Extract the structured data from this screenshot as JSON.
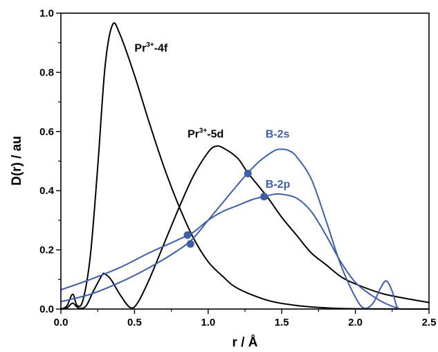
{
  "chart_data": {
    "type": "line",
    "title": "",
    "xlabel": "r / Å",
    "ylabel": "D(r) / au",
    "xlim": [
      0.0,
      2.5
    ],
    "ylim": [
      0.0,
      1.0
    ],
    "x_ticks": [
      "0.0",
      "0.5",
      "1.0",
      "1.5",
      "2.0",
      "2.5"
    ],
    "y_ticks": [
      "0.0",
      "0.2",
      "0.4",
      "0.6",
      "0.8",
      "1.0"
    ],
    "grid": false,
    "series": [
      {
        "name": "Pr³⁺-4f",
        "label_parts": {
          "base": "Pr",
          "sup": "3+",
          "suffix": "-4f"
        },
        "color": "#000000",
        "points": [
          [
            0.0,
            0.0
          ],
          [
            0.04,
            0.01
          ],
          [
            0.08,
            0.05
          ],
          [
            0.11,
            0.012
          ],
          [
            0.15,
            0.03
          ],
          [
            0.2,
            0.18
          ],
          [
            0.25,
            0.48
          ],
          [
            0.3,
            0.82
          ],
          [
            0.35,
            0.96
          ],
          [
            0.4,
            0.93
          ],
          [
            0.5,
            0.79
          ],
          [
            0.6,
            0.63
          ],
          [
            0.7,
            0.48
          ],
          [
            0.8,
            0.35
          ],
          [
            0.9,
            0.24
          ],
          [
            1.0,
            0.16
          ],
          [
            1.1,
            0.11
          ],
          [
            1.2,
            0.07
          ],
          [
            1.4,
            0.03
          ],
          [
            1.6,
            0.012
          ],
          [
            1.8,
            0.004
          ],
          [
            2.0,
            0.001
          ],
          [
            2.5,
            0.0
          ]
        ]
      },
      {
        "name": "Pr³⁺-5d",
        "label_parts": {
          "base": "Pr",
          "sup": "3+",
          "suffix": "-5d"
        },
        "color": "#000000",
        "points": [
          [
            0.0,
            0.0
          ],
          [
            0.04,
            0.003
          ],
          [
            0.08,
            0.02
          ],
          [
            0.12,
            0.003
          ],
          [
            0.17,
            0.01
          ],
          [
            0.22,
            0.06
          ],
          [
            0.28,
            0.115
          ],
          [
            0.3,
            0.118
          ],
          [
            0.34,
            0.1
          ],
          [
            0.4,
            0.05
          ],
          [
            0.47,
            0.005
          ],
          [
            0.52,
            0.02
          ],
          [
            0.6,
            0.1
          ],
          [
            0.7,
            0.22
          ],
          [
            0.8,
            0.34
          ],
          [
            0.9,
            0.45
          ],
          [
            1.0,
            0.53
          ],
          [
            1.05,
            0.55
          ],
          [
            1.1,
            0.545
          ],
          [
            1.2,
            0.51
          ],
          [
            1.27,
            0.46
          ],
          [
            1.4,
            0.38
          ],
          [
            1.5,
            0.31
          ],
          [
            1.6,
            0.25
          ],
          [
            1.7,
            0.19
          ],
          [
            1.8,
            0.15
          ],
          [
            1.9,
            0.11
          ],
          [
            2.0,
            0.085
          ],
          [
            2.2,
            0.05
          ],
          [
            2.5,
            0.022
          ]
        ]
      },
      {
        "name": "B-2s",
        "color": "#3f5ea8",
        "points": [
          [
            0.0,
            0.025
          ],
          [
            0.2,
            0.05
          ],
          [
            0.4,
            0.09
          ],
          [
            0.6,
            0.14
          ],
          [
            0.8,
            0.2
          ],
          [
            0.9,
            0.24
          ],
          [
            1.0,
            0.3
          ],
          [
            1.1,
            0.36
          ],
          [
            1.2,
            0.42
          ],
          [
            1.27,
            0.46
          ],
          [
            1.35,
            0.5
          ],
          [
            1.45,
            0.535
          ],
          [
            1.5,
            0.54
          ],
          [
            1.55,
            0.535
          ],
          [
            1.6,
            0.515
          ],
          [
            1.7,
            0.44
          ],
          [
            1.8,
            0.3
          ],
          [
            1.9,
            0.15
          ],
          [
            2.0,
            0.04
          ],
          [
            2.06,
            0.003
          ],
          [
            2.12,
            0.02
          ],
          [
            2.17,
            0.07
          ],
          [
            2.21,
            0.095
          ],
          [
            2.25,
            0.06
          ],
          [
            2.28,
            0.01
          ],
          [
            2.3,
            0.0
          ]
        ]
      },
      {
        "name": "B-2p",
        "color": "#3f5ea8",
        "points": [
          [
            0.0,
            0.065
          ],
          [
            0.2,
            0.1
          ],
          [
            0.4,
            0.14
          ],
          [
            0.6,
            0.19
          ],
          [
            0.8,
            0.235
          ],
          [
            0.9,
            0.26
          ],
          [
            1.0,
            0.3
          ],
          [
            1.1,
            0.33
          ],
          [
            1.2,
            0.35
          ],
          [
            1.3,
            0.37
          ],
          [
            1.38,
            0.38
          ],
          [
            1.45,
            0.388
          ],
          [
            1.5,
            0.388
          ],
          [
            1.6,
            0.375
          ],
          [
            1.7,
            0.33
          ],
          [
            1.8,
            0.25
          ],
          [
            1.9,
            0.16
          ],
          [
            2.0,
            0.09
          ],
          [
            2.1,
            0.05
          ],
          [
            2.2,
            0.02
          ],
          [
            2.3,
            0.0
          ]
        ]
      }
    ],
    "intersection_markers": [
      [
        0.86,
        0.25
      ],
      [
        0.88,
        0.22
      ],
      [
        1.27,
        0.458
      ],
      [
        1.38,
        0.38
      ]
    ],
    "annotations": [
      {
        "series": "Pr³⁺-4f",
        "at": [
          0.5,
          0.87
        ],
        "color": "#000000"
      },
      {
        "series": "Pr³⁺-5d",
        "at": [
          0.86,
          0.58
        ],
        "color": "#000000"
      },
      {
        "series": "B-2s",
        "at": [
          1.39,
          0.58
        ],
        "color": "#3f5ea8"
      },
      {
        "series": "B-2p",
        "at": [
          1.39,
          0.41
        ],
        "color": "#3f5ea8"
      }
    ]
  }
}
